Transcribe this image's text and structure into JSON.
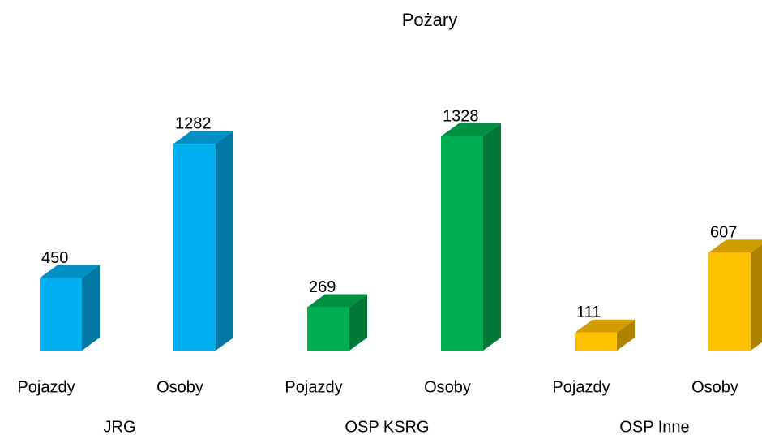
{
  "chart_data": {
    "type": "bar3d",
    "title": "Pożary",
    "groups": [
      {
        "name": "JRG",
        "color": "#00b0f0",
        "categories": [
          "Pojazdy",
          "Osoby"
        ],
        "values": [
          450,
          1282
        ]
      },
      {
        "name": "OSP KSRG",
        "color": "#00b050",
        "categories": [
          "Pojazdy",
          "Osoby"
        ],
        "values": [
          269,
          1328
        ]
      },
      {
        "name": "OSP Inne",
        "color": "#ffc000",
        "categories": [
          "Pojazdy",
          "Osoby"
        ],
        "values": [
          111,
          607
        ]
      }
    ]
  }
}
